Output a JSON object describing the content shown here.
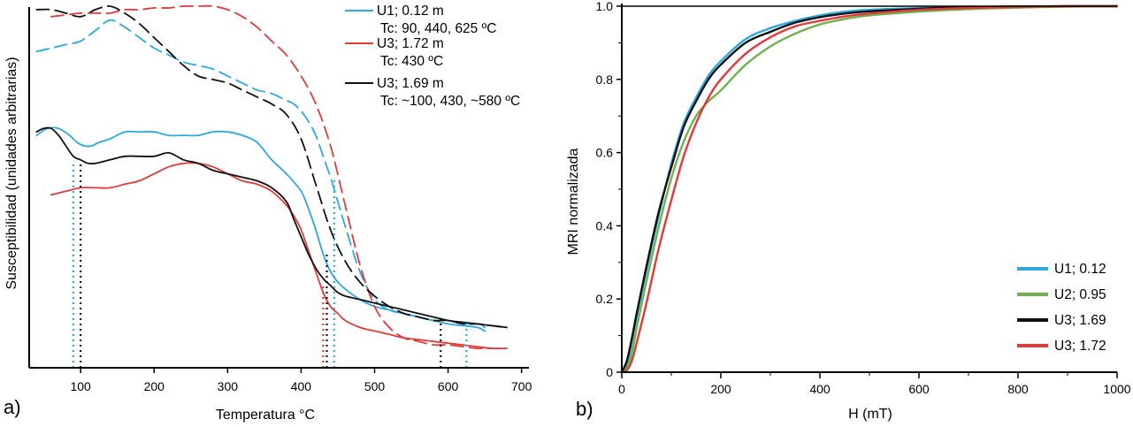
{
  "colors": {
    "u1": "#2fa8dc",
    "u2": "#6fb24f",
    "u3_169": "#111111",
    "u3_172": "#e03a3a"
  },
  "panel_a": {
    "label": "a)",
    "ylabel": "Susceptibilidad (unidades arbitrarias)",
    "legend": [
      {
        "line1": "U1; 0.12 m",
        "line2": "Tc: 90, 440, 625 ºC",
        "color_key": "u1"
      },
      {
        "line1": "U3; 1.72 m",
        "line2": "Tc: 430 ºC",
        "color_key": "u3_172"
      },
      {
        "line1": "U3; 1.69 m",
        "line2": "Tc: ~100, 430, ~580 ºC",
        "color_key": "u3_169"
      }
    ]
  },
  "panel_b": {
    "label": "b)",
    "legend": [
      {
        "label": "U1; 0.12",
        "color_key": "u1"
      },
      {
        "label": "U2; 0.95",
        "color_key": "u2"
      },
      {
        "label": "U3; 1.69",
        "color_key": "u3_169"
      },
      {
        "label": "U3; 1.72",
        "color_key": "u3_172"
      }
    ]
  },
  "chart_data": [
    {
      "type": "line",
      "title": "",
      "xlabel": "Temperatura °C",
      "ylabel": "Susceptibilidad (unidades arbitrarias)",
      "xlim": [
        30,
        710
      ],
      "ylim": [
        0,
        100
      ],
      "xticks": [
        100,
        200,
        300,
        400,
        500,
        600,
        700
      ],
      "tick_labels": [
        "100",
        "200",
        "300",
        "400",
        "500",
        "600",
        "700"
      ],
      "yaxis_note": "arbitrary units, no tick labels",
      "series": [
        {
          "name": "U1; 0.12 m (heating)",
          "color_key": "u1",
          "style": "solid",
          "x": [
            40,
            55,
            70,
            85,
            95,
            105,
            115,
            125,
            140,
            160,
            180,
            200,
            220,
            240,
            260,
            280,
            300,
            320,
            340,
            360,
            380,
            400,
            410,
            420,
            430,
            440,
            450,
            460,
            480,
            500,
            520,
            540,
            560,
            580,
            600,
            620,
            640,
            650
          ],
          "y": [
            63,
            65,
            65,
            63,
            61,
            60,
            60,
            61,
            62,
            64,
            64,
            64,
            63,
            63,
            63,
            64,
            64,
            63,
            61,
            56,
            52,
            47,
            42,
            36,
            29,
            24,
            21,
            19,
            16,
            14,
            13,
            12,
            11,
            10,
            9,
            8.5,
            8,
            7
          ]
        },
        {
          "name": "U1; 0.12 m (cooling)",
          "color_key": "u1",
          "style": "dashed",
          "x": [
            40,
            60,
            80,
            100,
            120,
            140,
            160,
            180,
            200,
            220,
            240,
            260,
            280,
            300,
            320,
            340,
            360,
            380,
            390,
            400,
            410,
            420,
            430,
            440,
            450,
            460,
            480,
            500,
            520,
            540,
            560,
            580,
            600,
            620,
            640,
            650
          ],
          "y": [
            87,
            88,
            89,
            90,
            93,
            96,
            94,
            91,
            88,
            86,
            84,
            83,
            82,
            80,
            78,
            76,
            75,
            73,
            72,
            70,
            67,
            63,
            57,
            51,
            44,
            37,
            24,
            16,
            13,
            12,
            11,
            10,
            10,
            9,
            9,
            8
          ]
        },
        {
          "name": "U3; 1.72 m (heating)",
          "color_key": "u3_172",
          "style": "solid",
          "x": [
            60,
            80,
            100,
            120,
            140,
            160,
            180,
            200,
            220,
            240,
            260,
            280,
            300,
            320,
            340,
            360,
            380,
            390,
            400,
            410,
            420,
            430,
            440,
            450,
            460,
            480,
            500,
            520,
            540,
            560,
            580,
            600,
            620,
            640,
            660,
            680
          ],
          "y": [
            46,
            47,
            48,
            48,
            48,
            49,
            50,
            52,
            54,
            55,
            55,
            54,
            52,
            50,
            49,
            47,
            43,
            40,
            36,
            30,
            24,
            18,
            14,
            12,
            10,
            8,
            7,
            6,
            5,
            4.5,
            4,
            3.5,
            3,
            2.5,
            2,
            2
          ]
        },
        {
          "name": "U3; 1.72 m (cooling)",
          "color_key": "u3_172",
          "style": "dashed",
          "x": [
            60,
            80,
            100,
            120,
            140,
            160,
            180,
            200,
            220,
            240,
            260,
            280,
            300,
            320,
            340,
            360,
            380,
            400,
            420,
            440,
            460,
            480,
            500,
            520,
            540,
            560,
            580,
            600,
            620,
            640,
            660,
            680
          ],
          "y": [
            97,
            97.5,
            98,
            98,
            98,
            99,
            99,
            99.5,
            99.5,
            100,
            100,
            100,
            99,
            97,
            94,
            90,
            86,
            80,
            72,
            60,
            43,
            26,
            14,
            8,
            5,
            4,
            3,
            3,
            2.5,
            2,
            2,
            2
          ]
        },
        {
          "name": "U3; 1.69 m (heating)",
          "color_key": "u3_169",
          "style": "solid",
          "x": [
            40,
            50,
            60,
            70,
            80,
            90,
            100,
            110,
            120,
            140,
            160,
            180,
            200,
            220,
            240,
            260,
            280,
            300,
            320,
            340,
            360,
            380,
            390,
            400,
            410,
            420,
            430,
            440,
            450,
            460,
            480,
            500,
            520,
            540,
            560,
            580,
            600,
            620,
            640,
            660,
            680
          ],
          "y": [
            64,
            65,
            65,
            63,
            60,
            57,
            56,
            55,
            55,
            56,
            57,
            57,
            57,
            58,
            56,
            55,
            53,
            52,
            51,
            50,
            48,
            44,
            39,
            34,
            29,
            25,
            22,
            20,
            18,
            17,
            16,
            15,
            14,
            13,
            12,
            11,
            10,
            9.5,
            9,
            8.5,
            8
          ]
        },
        {
          "name": "U3; 1.69 m (cooling)",
          "color_key": "u3_169",
          "style": "dashed",
          "x": [
            40,
            60,
            80,
            100,
            120,
            140,
            160,
            180,
            200,
            220,
            240,
            260,
            280,
            300,
            320,
            340,
            360,
            380,
            400,
            420,
            440,
            460,
            480,
            500,
            520,
            540,
            560,
            580,
            600,
            620,
            640,
            660,
            680
          ],
          "y": [
            99,
            99,
            98,
            97,
            99,
            100,
            98,
            95,
            91,
            87,
            83,
            80,
            79,
            78,
            76,
            74,
            72,
            69,
            62,
            49,
            36,
            27,
            21,
            17,
            14,
            12,
            11,
            10,
            10,
            9,
            9,
            8.5,
            8
          ]
        }
      ],
      "annotations": [
        {
          "type": "vline",
          "x": 90,
          "color_key": "u1",
          "style": "dotted",
          "ymax": 55
        },
        {
          "type": "vline",
          "x": 100,
          "color_key": "u3_169",
          "style": "dotted",
          "ymax": 55
        },
        {
          "type": "vline",
          "x": 430,
          "color_key": "u3_172",
          "style": "dotted",
          "ymax": 20
        },
        {
          "type": "vline",
          "x": 435,
          "color_key": "u3_169",
          "style": "dotted",
          "ymax": 29
        },
        {
          "type": "vline",
          "x": 445,
          "color_key": "u1",
          "style": "dotted",
          "ymax": 51
        },
        {
          "type": "vline",
          "x": 590,
          "color_key": "u3_169",
          "style": "dotted",
          "ymax": 11
        },
        {
          "type": "vline",
          "x": 625,
          "color_key": "u1",
          "style": "dotted",
          "ymax": 8.5
        }
      ]
    },
    {
      "type": "line",
      "title": "",
      "xlabel": "H (mT)",
      "ylabel": "MRI normalizada",
      "xlim": [
        0,
        1000
      ],
      "ylim": [
        0,
        1.0
      ],
      "xticks": [
        0,
        200,
        400,
        600,
        800,
        1000
      ],
      "xtick_labels": [
        "0",
        "200",
        "400",
        "600",
        "800",
        "1000"
      ],
      "yticks": [
        0,
        0.2,
        0.4,
        0.6,
        0.8,
        1.0
      ],
      "ytick_labels": [
        "0",
        "0.2",
        "0.4",
        "0.6",
        "0.8",
        "1.0"
      ],
      "legend_position": "bottom-right",
      "series": [
        {
          "name": "U1; 0.12",
          "color_key": "u1",
          "x": [
            0,
            10,
            20,
            30,
            50,
            75,
            100,
            125,
            150,
            175,
            200,
            250,
            300,
            350,
            400,
            450,
            500,
            600,
            700,
            800,
            900,
            1000
          ],
          "y": [
            0,
            0.02,
            0.08,
            0.15,
            0.28,
            0.43,
            0.57,
            0.68,
            0.75,
            0.81,
            0.85,
            0.91,
            0.94,
            0.96,
            0.975,
            0.985,
            0.99,
            0.995,
            0.998,
            0.999,
            1.0,
            1.0
          ]
        },
        {
          "name": "U2; 0.95",
          "color_key": "u2",
          "x": [
            0,
            10,
            20,
            30,
            50,
            75,
            100,
            125,
            150,
            175,
            200,
            250,
            300,
            350,
            400,
            450,
            500,
            600,
            700,
            800,
            900,
            1000
          ],
          "y": [
            0,
            0.01,
            0.05,
            0.12,
            0.25,
            0.4,
            0.53,
            0.63,
            0.7,
            0.74,
            0.77,
            0.84,
            0.89,
            0.925,
            0.95,
            0.965,
            0.975,
            0.985,
            0.992,
            0.996,
            0.999,
            1.0
          ]
        },
        {
          "name": "U3; 1.69",
          "color_key": "u3_169",
          "x": [
            0,
            10,
            20,
            30,
            50,
            75,
            100,
            125,
            150,
            175,
            200,
            250,
            300,
            350,
            400,
            450,
            500,
            600,
            700,
            800,
            900,
            1000
          ],
          "y": [
            0,
            0.03,
            0.09,
            0.16,
            0.29,
            0.44,
            0.56,
            0.67,
            0.74,
            0.8,
            0.84,
            0.9,
            0.93,
            0.955,
            0.97,
            0.98,
            0.986,
            0.993,
            0.997,
            0.999,
            1.0,
            1.0
          ]
        },
        {
          "name": "U3; 1.72",
          "color_key": "u3_172",
          "x": [
            0,
            10,
            20,
            30,
            50,
            75,
            100,
            125,
            150,
            175,
            200,
            250,
            300,
            350,
            400,
            450,
            500,
            600,
            700,
            800,
            900,
            1000
          ],
          "y": [
            0,
            0.005,
            0.03,
            0.08,
            0.19,
            0.34,
            0.47,
            0.59,
            0.68,
            0.75,
            0.8,
            0.87,
            0.915,
            0.945,
            0.96,
            0.972,
            0.98,
            0.99,
            0.995,
            0.998,
            1.0,
            1.0
          ]
        }
      ]
    }
  ]
}
